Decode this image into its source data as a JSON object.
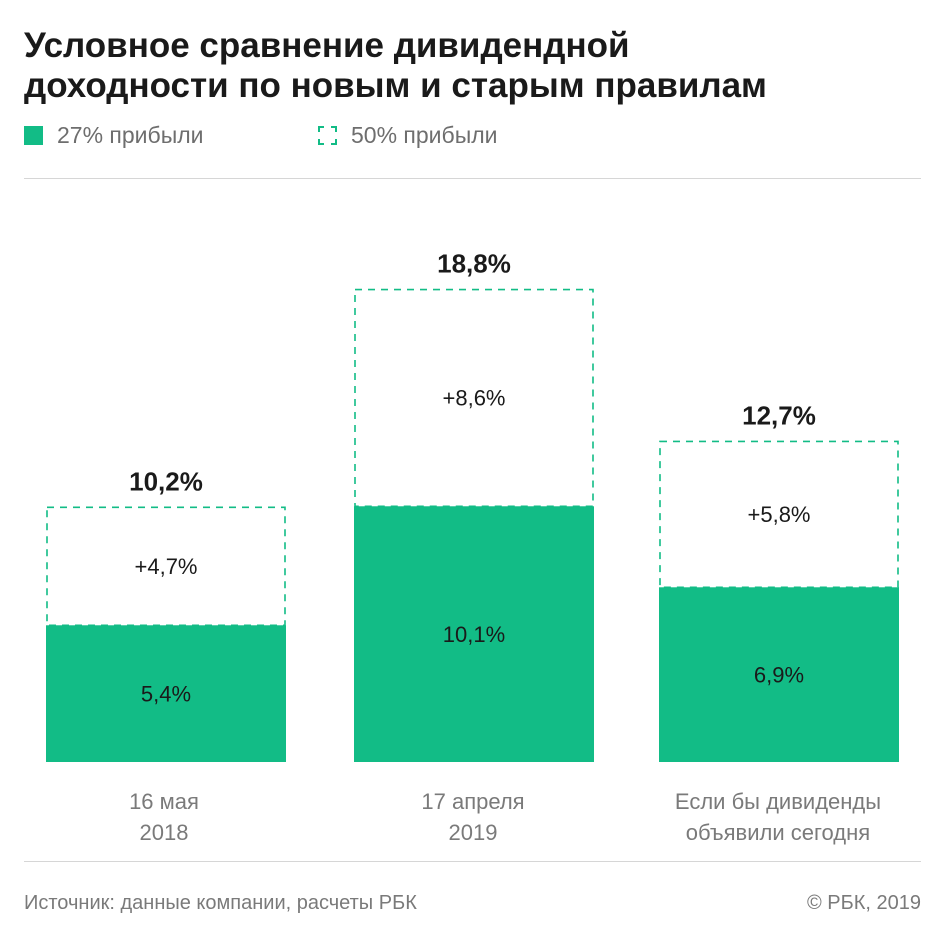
{
  "title_lines": [
    "Условное сравнение дивидендной",
    "доходности по новым и старым правилам"
  ],
  "legend": [
    {
      "label": "27% прибыли",
      "style": "solid"
    },
    {
      "label": "50% прибыли",
      "style": "dashed"
    }
  ],
  "colors": {
    "accent": "#12bc86"
  },
  "chart_data": {
    "type": "bar",
    "stacked": true,
    "categories": [
      {
        "lines": [
          "16 мая",
          "2018"
        ]
      },
      {
        "lines": [
          "17 апреля",
          "2019"
        ]
      },
      {
        "lines": [
          "Если бы дивиденды",
          "объявили сегодня"
        ]
      }
    ],
    "series": [
      {
        "name": "27% прибыли",
        "values": [
          5.4,
          10.1,
          6.9
        ],
        "labels": [
          "5,4%",
          "10,1%",
          "6,9%"
        ]
      },
      {
        "name": "50% прибыли",
        "values": [
          4.7,
          8.6,
          5.8
        ],
        "labels": [
          "+4,7%",
          "+8,6%",
          "+5,8%"
        ]
      }
    ],
    "totals": [
      10.2,
      18.8,
      12.7
    ],
    "total_labels": [
      "10,2%",
      "18,8%",
      "12,7%"
    ],
    "ylim": [
      0,
      18.8
    ],
    "grid": false,
    "legend_position": "top-left"
  },
  "footer": {
    "source": "Источник: данные компании, расчеты РБК",
    "copyright": "© РБК, 2019"
  }
}
